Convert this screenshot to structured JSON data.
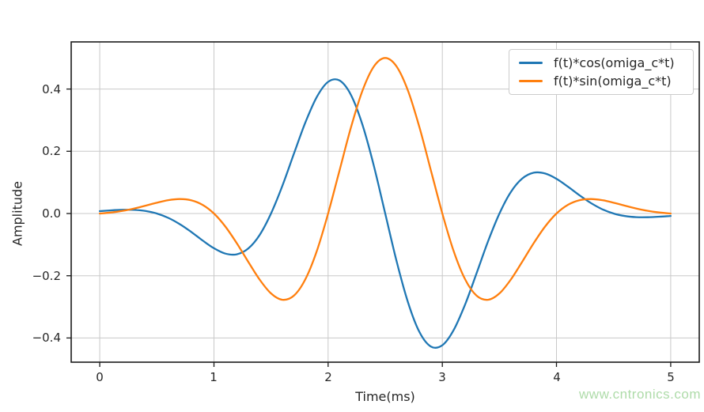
{
  "watermark": "www.cntronics.com",
  "colors": {
    "background": "#ffffff",
    "blue_line": "#1f77b4",
    "orange_line": "#ff7f0e",
    "grid": "#c9c9c9",
    "spine": "#1a1a1a",
    "text": "#262626",
    "legend_border": "#cccccc",
    "watermark_green": "#a6d8a0"
  },
  "chart_data": {
    "type": "line",
    "title": "",
    "xlabel": "Time(ms)",
    "ylabel": "Amplitude",
    "xlim": [
      -0.25,
      5.25
    ],
    "ylim": [
      -0.4777,
      0.5515
    ],
    "xticks": [
      0,
      1,
      2,
      3,
      4,
      5
    ],
    "yticks": [
      -0.4,
      -0.2,
      0.0,
      0.2,
      0.4
    ],
    "grid": true,
    "legend_position": "upper right",
    "x": [
      0.0,
      0.1,
      0.2,
      0.3,
      0.4,
      0.5,
      0.6,
      0.7,
      0.8,
      0.9,
      1.0,
      1.1,
      1.2,
      1.3,
      1.4,
      1.5,
      1.6,
      1.7,
      1.8,
      1.9,
      2.0,
      2.1,
      2.2,
      2.3,
      2.4,
      2.5,
      2.6,
      2.7,
      2.8,
      2.9,
      3.0,
      3.1,
      3.2,
      3.3,
      3.4,
      3.5,
      3.6,
      3.7,
      3.8,
      3.9,
      4.0,
      4.1,
      4.2,
      4.3,
      4.4,
      4.5,
      4.6,
      4.7,
      4.8,
      4.9,
      5.0
    ],
    "series": [
      {
        "name": "f(t)*cos(omiga_c*t)",
        "color": "#1f77b4",
        "values": [
          0.0078,
          0.0102,
          0.0119,
          0.0117,
          0.0082,
          0.0,
          -0.0139,
          -0.0339,
          -0.059,
          -0.0863,
          -0.1116,
          -0.1287,
          -0.1311,
          -0.1125,
          -0.069,
          0.0,
          0.09,
          0.1918,
          0.2918,
          0.3741,
          0.4232,
          0.4274,
          0.381,
          0.2862,
          0.1535,
          0.0,
          -0.1535,
          -0.2862,
          -0.381,
          -0.4274,
          -0.4232,
          -0.3741,
          -0.2918,
          -0.1918,
          -0.09,
          0.0,
          0.069,
          0.1125,
          0.1311,
          0.1287,
          0.1116,
          0.0863,
          0.059,
          0.0339,
          0.0139,
          0.0,
          -0.0082,
          -0.0117,
          -0.0119,
          -0.0102,
          -0.0078
        ]
      },
      {
        "name": "f(t)*sin(omiga_c*t)",
        "color": "#ff7f0e",
        "values": [
          0.0,
          0.0033,
          0.0086,
          0.0161,
          0.0251,
          0.0347,
          0.0429,
          0.0466,
          0.0428,
          0.028,
          0.0,
          -0.0418,
          -0.0953,
          -0.1549,
          -0.2122,
          -0.2567,
          -0.2771,
          -0.264,
          -0.212,
          -0.1215,
          0.0,
          0.1389,
          0.2768,
          0.3939,
          0.4724,
          0.5,
          0.4724,
          0.3939,
          0.2768,
          0.1389,
          0.0,
          -0.1215,
          -0.212,
          -0.264,
          -0.2771,
          -0.2567,
          -0.2122,
          -0.1549,
          -0.0953,
          -0.0418,
          0.0,
          0.028,
          0.0428,
          0.0466,
          0.0429,
          0.0347,
          0.0251,
          0.0161,
          0.0086,
          0.0033,
          0.0
        ]
      }
    ]
  }
}
